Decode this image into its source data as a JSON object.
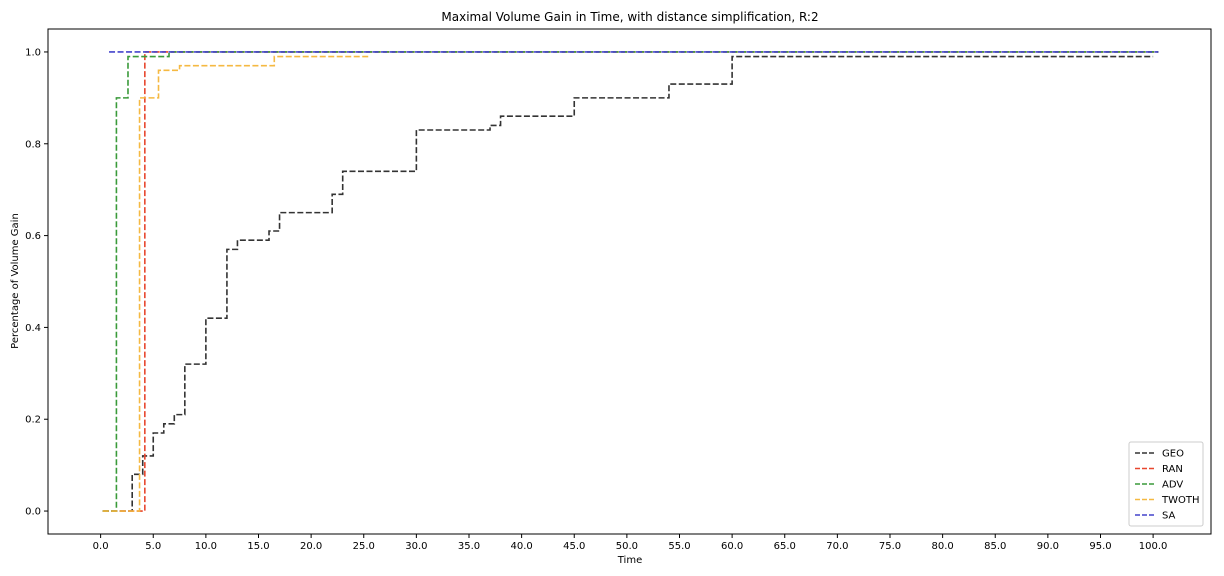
{
  "chart_data": {
    "type": "line",
    "step": true,
    "title": "Maximal Volume Gain in Time, with distance simplification, R:2",
    "xlabel": "Time",
    "ylabel": "Percentage of Volume Gain",
    "xlim": [
      -5.0,
      105.5
    ],
    "ylim": [
      -0.05,
      1.05
    ],
    "xticks": [
      0,
      5,
      10,
      15,
      20,
      25,
      30,
      35,
      40,
      45,
      50,
      55,
      60,
      65,
      70,
      75,
      80,
      85,
      90,
      95,
      100
    ],
    "xtick_labels": [
      "0.0",
      "5.0",
      "10.0",
      "15.0",
      "20.0",
      "25.0",
      "30.0",
      "35.0",
      "40.0",
      "45.0",
      "50.0",
      "55.0",
      "60.0",
      "65.0",
      "70.0",
      "75.0",
      "80.0",
      "85.0",
      "90.0",
      "95.0",
      "100.0"
    ],
    "yticks": [
      0.0,
      0.2,
      0.4,
      0.6,
      0.8,
      1.0
    ],
    "ytick_labels": [
      "0.0",
      "0.2",
      "0.4",
      "0.6",
      "0.8",
      "1.0"
    ],
    "grid": false,
    "legend_position": "bottom-right",
    "series": [
      {
        "name": "GEO",
        "color": "#333333",
        "x": [
          0.2,
          3.0,
          4.0,
          5.0,
          6.0,
          7.0,
          8.0,
          10.0,
          12.0,
          13.0,
          16.0,
          17.0,
          22.0,
          23.0,
          30.0,
          37.0,
          38.0,
          45.0,
          54.0,
          60.0,
          100.0
        ],
        "y": [
          0.0,
          0.08,
          0.12,
          0.17,
          0.19,
          0.21,
          0.32,
          0.42,
          0.57,
          0.59,
          0.61,
          0.65,
          0.69,
          0.74,
          0.83,
          0.84,
          0.86,
          0.9,
          0.93,
          0.99,
          0.99
        ]
      },
      {
        "name": "RAN",
        "color": "#e8472e",
        "x": [
          0.2,
          4.2,
          100.5
        ],
        "y": [
          0.0,
          1.0,
          1.0
        ]
      },
      {
        "name": "ADV",
        "color": "#3a9a3a",
        "x": [
          0.2,
          1.5,
          2.6,
          6.5,
          100.5
        ],
        "y": [
          0.0,
          0.9,
          0.99,
          1.0,
          1.0
        ]
      },
      {
        "name": "TWOTH",
        "color": "#f5b942",
        "x": [
          0.2,
          3.7,
          5.5,
          7.5,
          16.5,
          25.5
        ],
        "y": [
          0.0,
          0.9,
          0.96,
          0.97,
          0.99,
          0.99
        ]
      },
      {
        "name": "SA",
        "color": "#4444cc",
        "x": [
          0.8,
          100.5
        ],
        "y": [
          1.0,
          1.0
        ]
      }
    ]
  }
}
